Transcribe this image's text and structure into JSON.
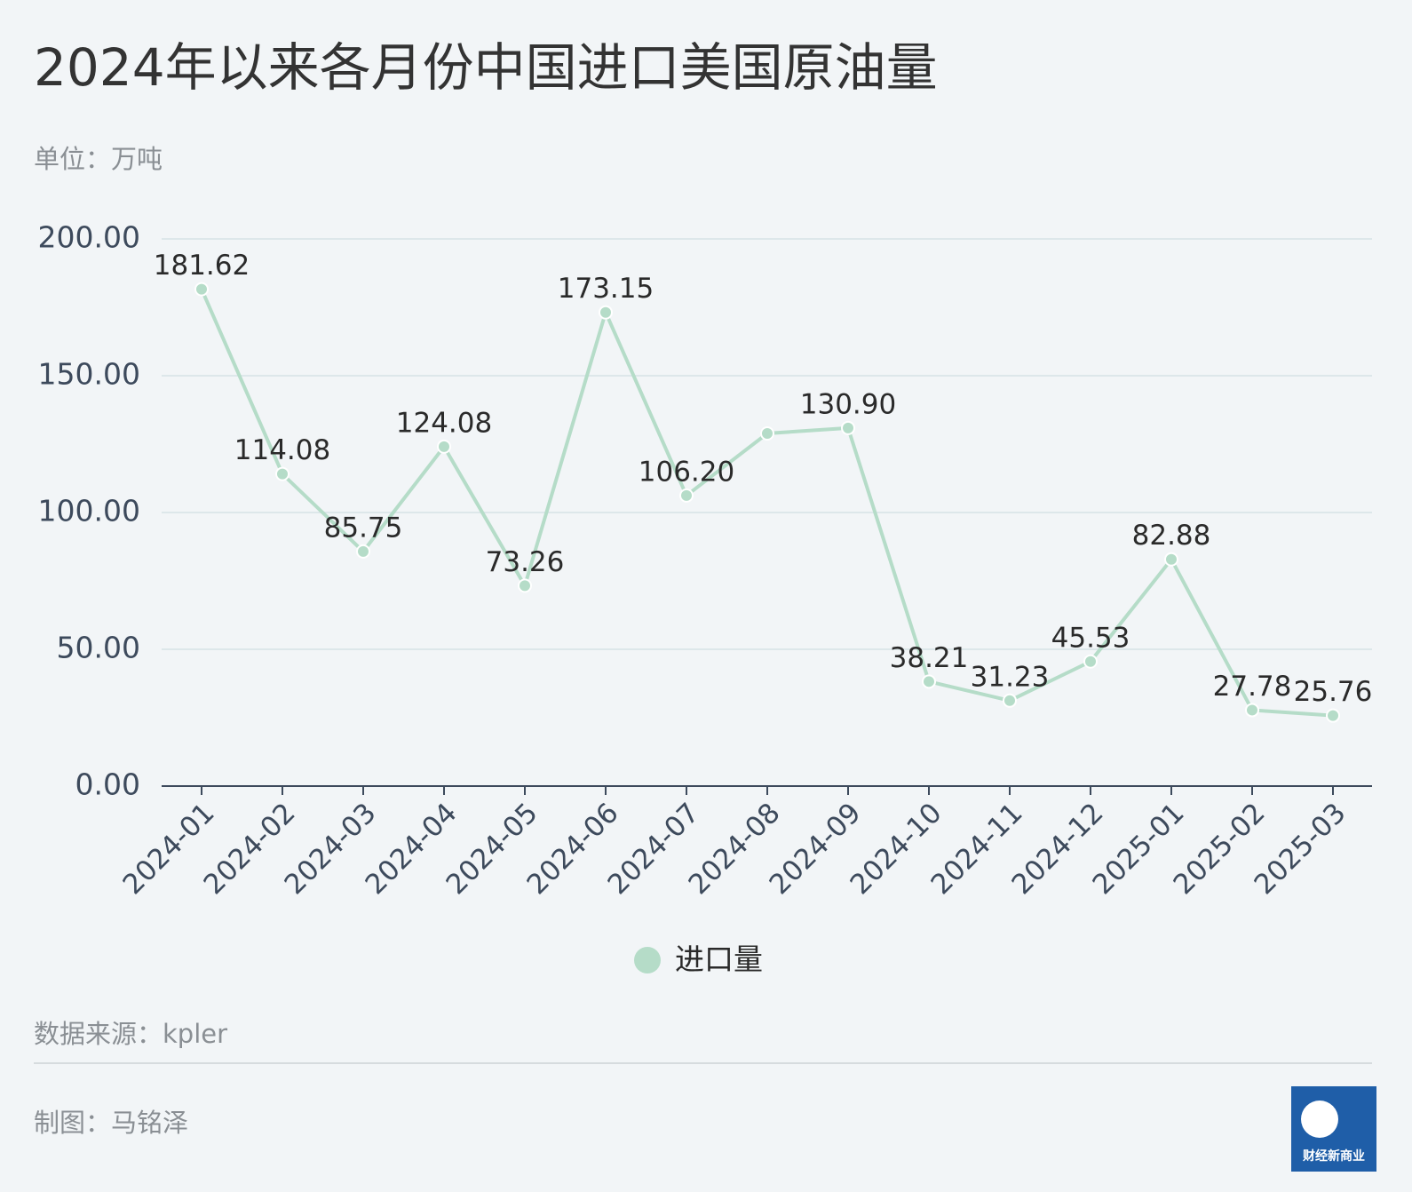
{
  "chart_data": {
    "type": "line",
    "title": "2024年以来各月份中国进口美国原油量",
    "subtitle": "单位：万吨",
    "categories": [
      "2024-01",
      "2024-02",
      "2024-03",
      "2024-04",
      "2024-05",
      "2024-06",
      "2024-07",
      "2024-08",
      "2024-09",
      "2024-10",
      "2024-11",
      "2024-12",
      "2025-01",
      "2025-02",
      "2025-03"
    ],
    "series": [
      {
        "name": "进口量",
        "color": "#b5dcc8",
        "values": [
          181.62,
          114.08,
          85.75,
          124.08,
          73.26,
          173.15,
          106.2,
          128.9,
          130.9,
          38.21,
          31.23,
          45.53,
          82.88,
          27.78,
          25.76
        ],
        "value_labels": [
          "181.62",
          "114.08",
          "85.75",
          "124.08",
          "73.26",
          "173.15",
          "106.20",
          null,
          "130.90",
          "38.21",
          "31.23",
          "45.53",
          "82.88",
          "27.78",
          "25.76"
        ]
      }
    ],
    "ylim": [
      0,
      200
    ],
    "yticks": [
      {
        "value": 0,
        "label": "0.00"
      },
      {
        "value": 50,
        "label": "50.00"
      },
      {
        "value": 100,
        "label": "100.00"
      },
      {
        "value": 150,
        "label": "150.00"
      },
      {
        "value": 200,
        "label": "200.00"
      }
    ],
    "grid": true,
    "source": "数据来源：kpler",
    "credit": "制图：马铭泽",
    "logo": "财经新商业"
  }
}
